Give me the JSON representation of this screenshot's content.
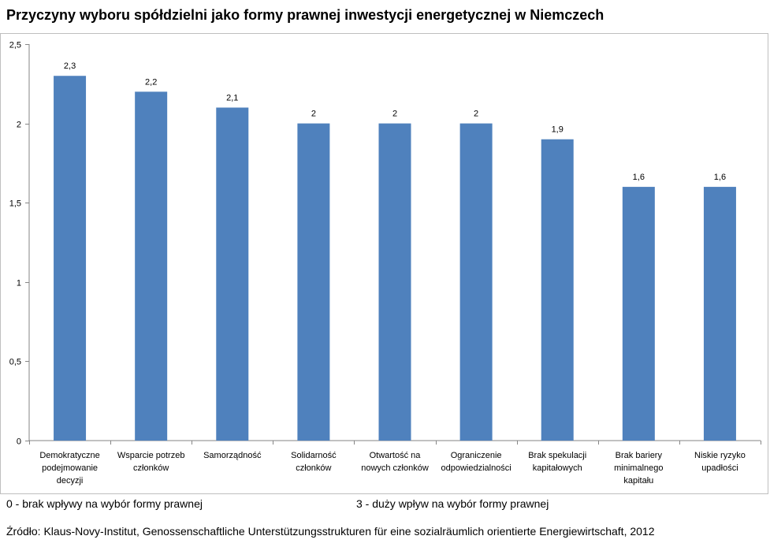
{
  "title": "Przyczyny wyboru spółdzielni jako formy prawnej inwestycji energetycznej w Niemczech",
  "notes": {
    "scale_min": "0 - brak wpływy na wybór formy prawnej",
    "scale_max": "3 - duży wpływ na wybór formy prawnej",
    "source": "Źródło: Klaus-Novy-Institut, Genossenschaftliche Unterstützungsstrukturen für eine sozialräumlich orientierte Energiewirtschaft, 2012"
  },
  "chart_data": {
    "type": "bar",
    "title": "Przyczyny wyboru spółdzielni jako formy prawnej inwestycji energetycznej w Niemczech",
    "categories": [
      [
        "Demokratyczne",
        "podejmowanie",
        "decyzji"
      ],
      [
        "Wsparcie potrzeb",
        "członków"
      ],
      [
        "Samorządność"
      ],
      [
        "Solidarność",
        "członków"
      ],
      [
        "Otwartość na",
        "nowych członków"
      ],
      [
        "Ograniczenie",
        "odpowiedzialności"
      ],
      [
        "Brak spekulacji",
        "kapitałowych"
      ],
      [
        "Brak bariery",
        "minimalnego",
        "kapitału"
      ],
      [
        "Niskie ryzyko",
        "upadłości"
      ]
    ],
    "values": [
      2.3,
      2.2,
      2.1,
      2,
      2,
      2,
      1.9,
      1.6,
      1.6
    ],
    "value_labels": [
      "2,3",
      "2,2",
      "2,1",
      "2",
      "2",
      "2",
      "1,9",
      "1,6",
      "1,6"
    ],
    "y_ticks": [
      0,
      0.5,
      1,
      1.5,
      2,
      2.5
    ],
    "y_tick_labels": [
      "0",
      "0,5",
      "1",
      "1,5",
      "2",
      "2,5"
    ],
    "ylim": [
      0,
      2.5
    ],
    "xlabel": "",
    "ylabel": "",
    "grid": false,
    "legend": false,
    "bar_color": "#4f81bd",
    "axis_color": "#868686"
  }
}
